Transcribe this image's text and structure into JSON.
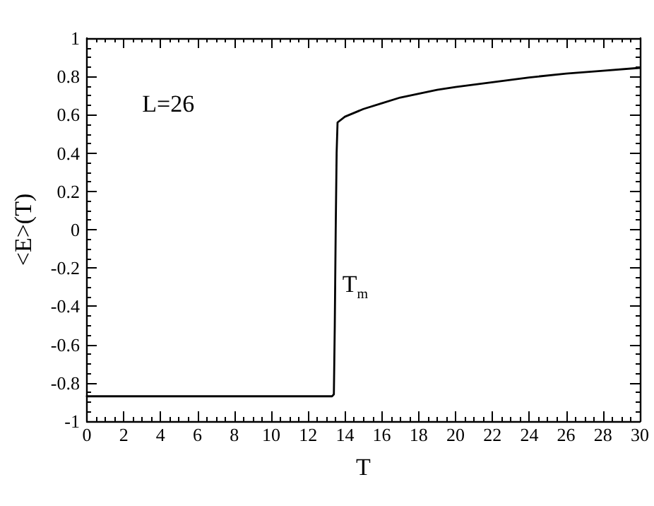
{
  "chart_data": {
    "type": "line",
    "xlabel": "T",
    "ylabel": "<E>(T)",
    "annotations": [
      "L=26",
      "T$_{m}$"
    ],
    "series": [
      {
        "color": "#000000",
        "x": [
          0,
          2,
          4,
          6,
          8,
          10,
          12,
          13,
          13.3,
          13.4,
          13.45,
          13.5,
          13.55,
          13.6,
          14,
          15,
          16,
          17,
          18,
          19,
          20,
          22,
          24,
          26,
          28,
          30
        ],
        "values": [
          -0.87,
          -0.87,
          -0.87,
          -0.87,
          -0.87,
          -0.87,
          -0.87,
          -0.87,
          -0.87,
          -0.86,
          -0.5,
          0,
          0.4,
          0.56,
          0.59,
          0.63,
          0.66,
          0.69,
          0.71,
          0.73,
          0.745,
          0.77,
          0.795,
          0.815,
          0.83,
          0.845
        ]
      }
    ],
    "xlim": [
      0,
      30
    ],
    "xticks": [
      0,
      2,
      4,
      6,
      8,
      10,
      12,
      14,
      16,
      18,
      20,
      22,
      24,
      26,
      28,
      30
    ],
    "ylim": [
      -1,
      1
    ],
    "yticks": [
      -1,
      -0.8,
      -0.6,
      -0.4,
      -0.2,
      0,
      0.2,
      0.4,
      0.6,
      0.8,
      1
    ],
    "marker": "none",
    "line_style": "solid"
  }
}
